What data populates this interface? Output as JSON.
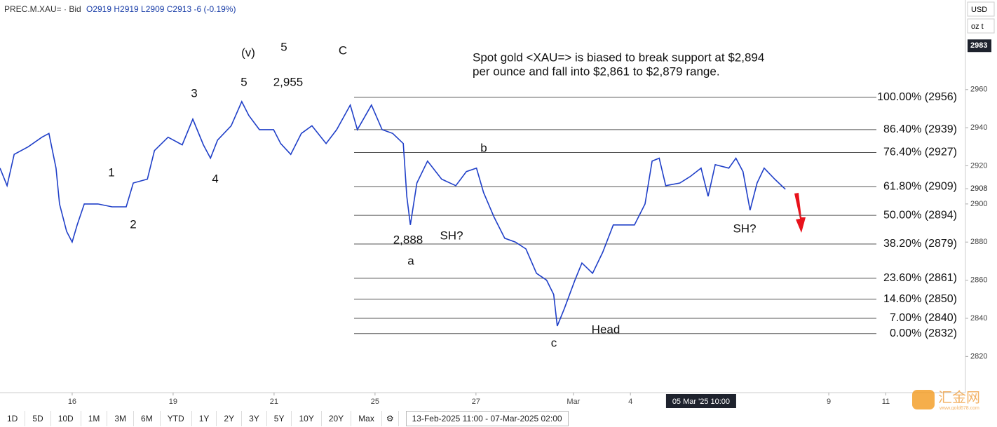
{
  "header": {
    "symbol": "PREC.M.XAU= · Bid",
    "ohlc": "O2919 H2919 L2909 C2913 -6 (-0.19%)"
  },
  "units": [
    "USD",
    "oz t"
  ],
  "chart_data": {
    "type": "line",
    "color": "#1f3fc8",
    "x": [
      0,
      0.14,
      0.28,
      0.56,
      0.83,
      0.97,
      1.11,
      1.18,
      1.32,
      1.43,
      1.53,
      1.67,
      1.94,
      2.22,
      2.5,
      2.64,
      2.92,
      3.06,
      3.33,
      3.61,
      3.82,
      4.03,
      4.17,
      4.31,
      4.58,
      4.79,
      4.93,
      5.14,
      5.42,
      5.56,
      5.76,
      5.97,
      6.18,
      6.46,
      6.67,
      6.94,
      7.08,
      7.36,
      7.57,
      7.78,
      7.99,
      8.06,
      8.13,
      8.26,
      8.47,
      8.75,
      9.03,
      9.24,
      9.44,
      9.58,
      9.79,
      10,
      10.21,
      10.42,
      10.63,
      10.83,
      10.97,
      11.04,
      11.18,
      11.39,
      11.53,
      11.74,
      11.94,
      12.15,
      12.36,
      12.57,
      12.78,
      12.92,
      13.06,
      13.19,
      13.47,
      13.68,
      13.89,
      14.03,
      14.17,
      14.44,
      14.58,
      14.72,
      14.86,
      15,
      15.14,
      15.35,
      15.56
    ],
    "values": [
      2918.8,
      2909.6,
      2926,
      2930,
      2935,
      2937,
      2918.8,
      2900,
      2885.6,
      2880,
      2889,
      2900,
      2900,
      2898.5,
      2898.5,
      2911,
      2913,
      2928,
      2935,
      2931,
      2944.5,
      2931,
      2924,
      2933.5,
      2941,
      2953.7,
      2946.4,
      2939,
      2939,
      2931.7,
      2926,
      2937,
      2941,
      2931.7,
      2939,
      2951.9,
      2939,
      2951.9,
      2939,
      2937,
      2931.7,
      2904,
      2889,
      2911,
      2922.5,
      2913,
      2909.6,
      2917,
      2918.8,
      2906,
      2893,
      2882,
      2880,
      2876.4,
      2863.6,
      2860,
      2852.5,
      2836,
      2845,
      2860,
      2869,
      2863.6,
      2874.6,
      2889,
      2889,
      2889,
      2900,
      2922.5,
      2924,
      2909.6,
      2911,
      2914.5,
      2918.8,
      2904,
      2920.6,
      2918.8,
      2924,
      2917,
      2896.7,
      2911,
      2918.8,
      2913,
      2907.7
    ],
    "xlim": [
      0,
      19.1
    ],
    "xticks": [
      {
        "value": 1.43,
        "label": "16"
      },
      {
        "value": 3.43,
        "label": "19"
      },
      {
        "value": 5.43,
        "label": "21"
      },
      {
        "value": 7.43,
        "label": "25"
      },
      {
        "value": 9.43,
        "label": "27"
      },
      {
        "value": 11.36,
        "label": "Mar"
      },
      {
        "value": 12.49,
        "label": "4"
      },
      {
        "value": 16.42,
        "label": "9"
      },
      {
        "value": 17.55,
        "label": "11"
      }
    ],
    "crosshair": {
      "value": 13.89,
      "label": "05 Mar '25 10:00"
    },
    "ylim": [
      2801,
      3007
    ],
    "yticks": [
      2960,
      2940,
      2920,
      2900,
      2880,
      2860,
      2840,
      2820
    ],
    "price_tags": [
      2983,
      2908
    ],
    "fib_levels": [
      {
        "value": 2956,
        "label": "100.00% (2956)"
      },
      {
        "value": 2939,
        "label": "86.40% (2939)"
      },
      {
        "value": 2927,
        "label": "76.40% (2927)"
      },
      {
        "value": 2909,
        "label": "61.80% (2909)"
      },
      {
        "value": 2894,
        "label": "50.00% (2894)"
      },
      {
        "value": 2879,
        "label": "38.20% (2879)"
      },
      {
        "value": 2861,
        "label": "23.60% (2861)"
      },
      {
        "value": 2850,
        "label": "14.60% (2850)"
      },
      {
        "value": 2840,
        "label": "7.00% (2840)"
      },
      {
        "value": 2832,
        "label": "0.00% (2832)"
      }
    ],
    "annotation": [
      "Spot gold <XAU=> is biased to break support at $2,894",
      "per ounce and fall into $2,861 to $2,879 range."
    ],
    "wave_labels": [
      "(v)",
      "5",
      "5",
      "2,955",
      "C",
      "3",
      "1",
      "4",
      "2",
      "2,888",
      "SH?",
      "a",
      "b",
      "SH?",
      "c",
      "Head"
    ]
  },
  "range_buttons": [
    "1D",
    "5D",
    "10D",
    "1M",
    "3M",
    "6M",
    "YTD",
    "1Y",
    "2Y",
    "3Y",
    "5Y",
    "10Y",
    "20Y",
    "Max"
  ],
  "date_range": "13-Feb-2025 11:00 - 07-Mar-2025 02:00",
  "watermark": {
    "brand": "汇金网",
    "site": "www.gold678.com"
  }
}
